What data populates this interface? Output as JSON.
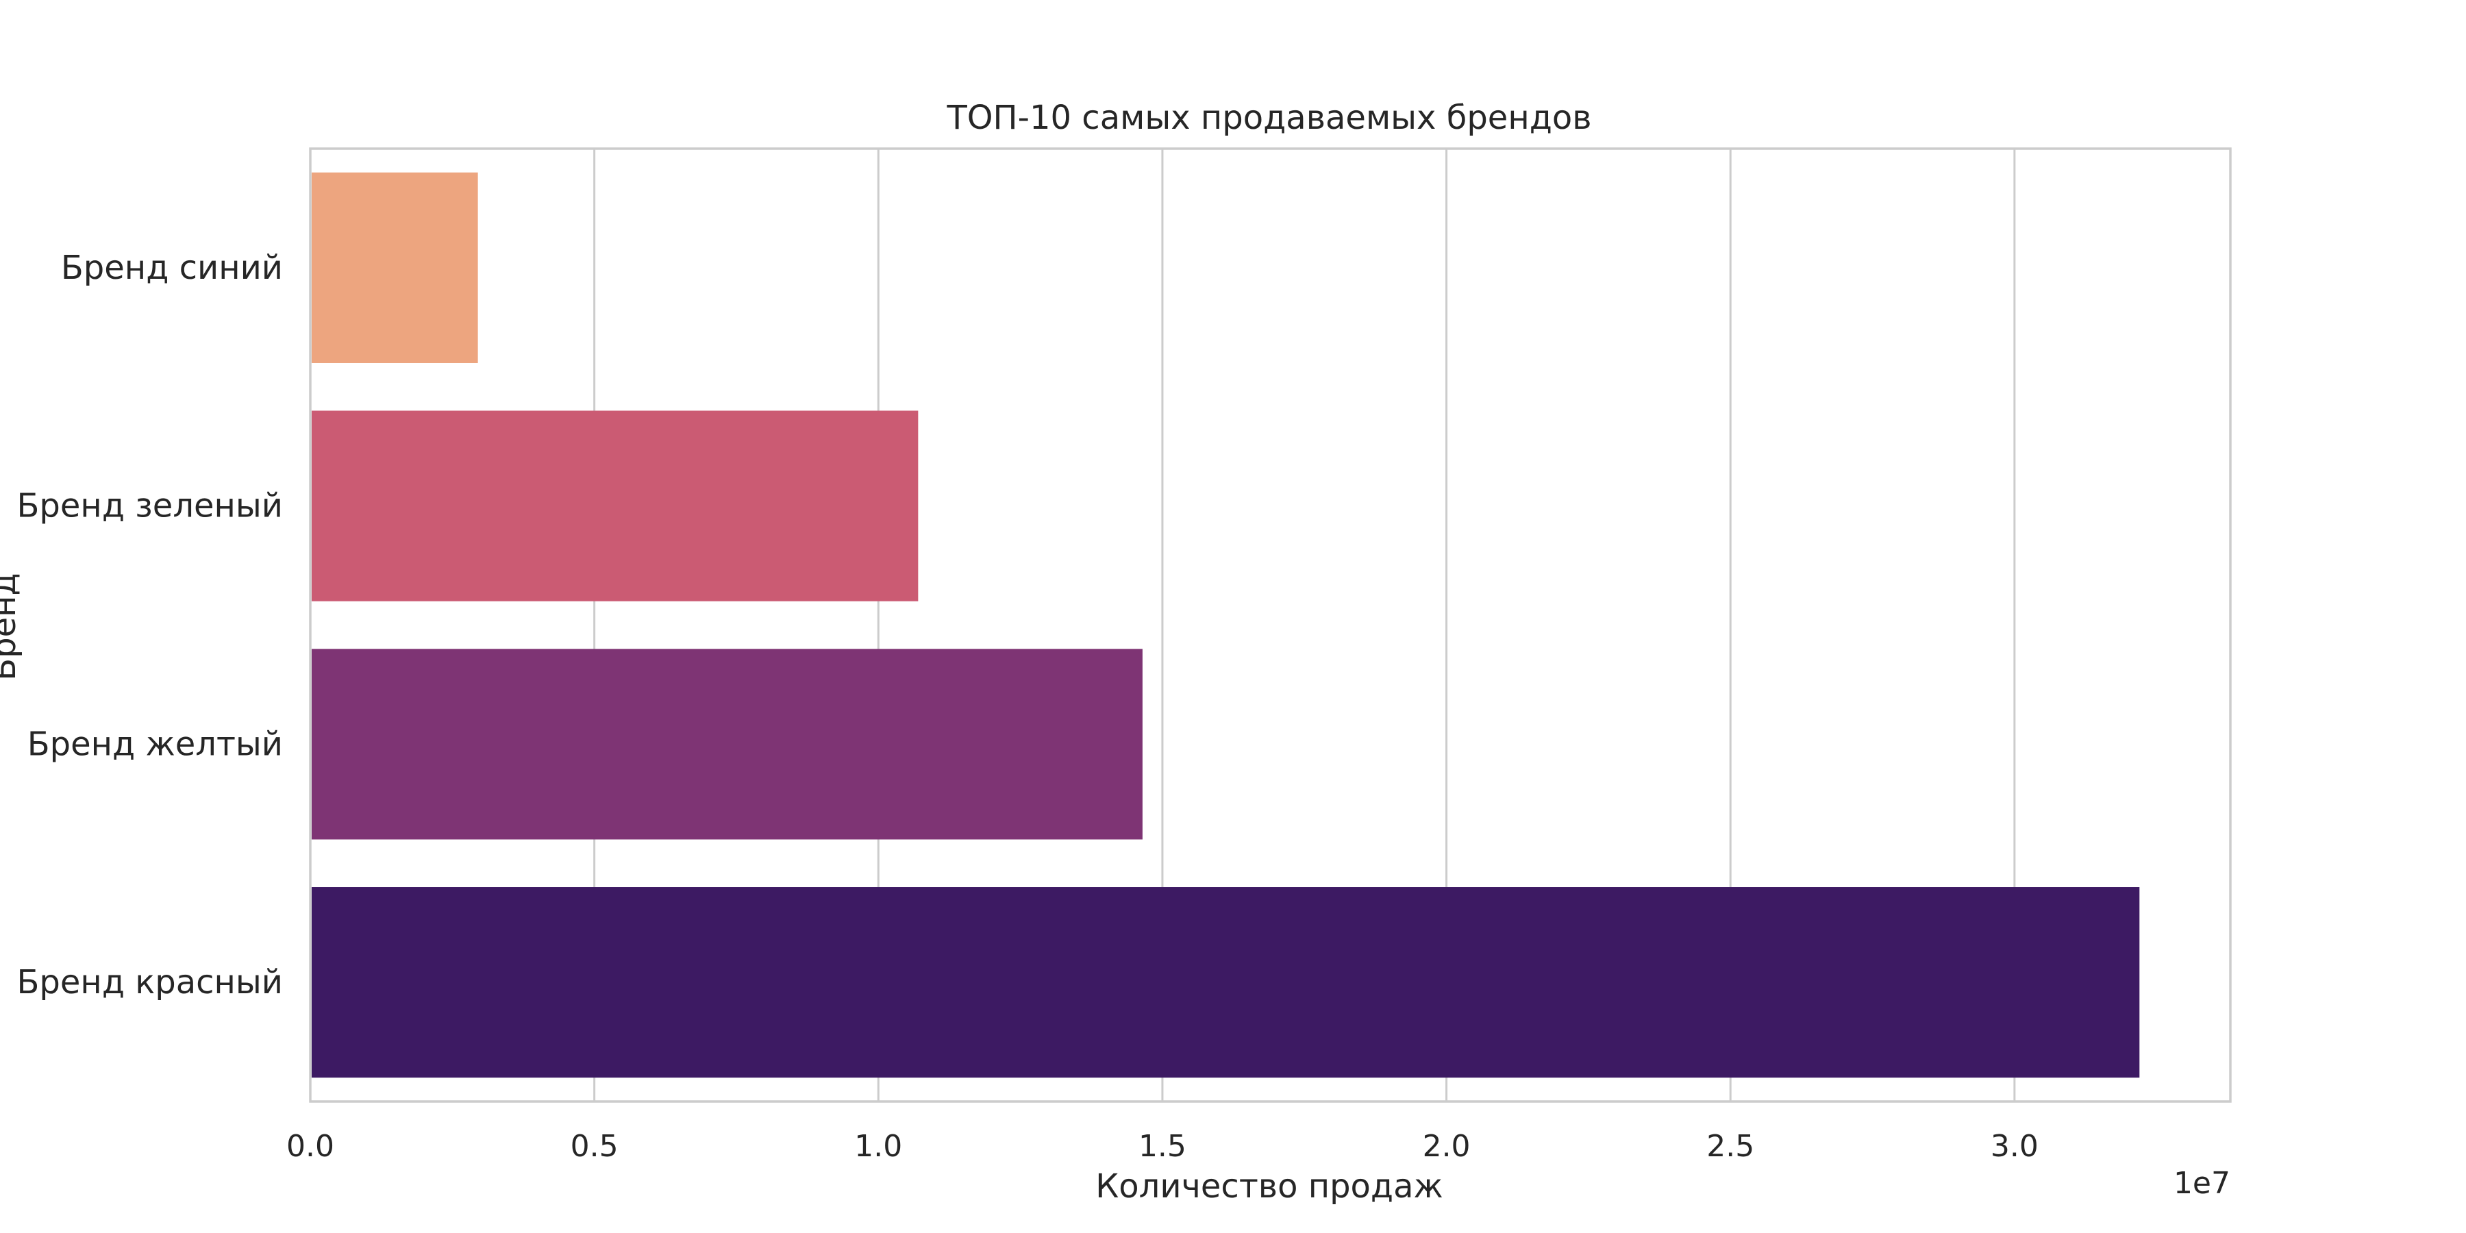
{
  "chart_data": {
    "type": "bar",
    "orientation": "horizontal",
    "title": "ТОП-10 самых продаваемых брендов",
    "xlabel": "Количество продаж",
    "ylabel": "Бренд",
    "offset_label": "1e7",
    "categories": [
      "Бренд синий",
      "Бренд зеленый",
      "Бренд желтый",
      "Бренд красный"
    ],
    "values": [
      2950000,
      10700000,
      14650000,
      32200000
    ],
    "colors": [
      "#eda57f",
      "#cb5b73",
      "#7e3474",
      "#3d1a63"
    ],
    "xlim": [
      0,
      33800000
    ],
    "x_ticks": [
      0,
      5000000,
      10000000,
      15000000,
      20000000,
      25000000,
      30000000
    ],
    "x_tick_labels": [
      "0.0",
      "0.5",
      "1.0",
      "1.5",
      "2.0",
      "2.5",
      "3.0"
    ],
    "grid": "vertical",
    "legend": "none"
  }
}
